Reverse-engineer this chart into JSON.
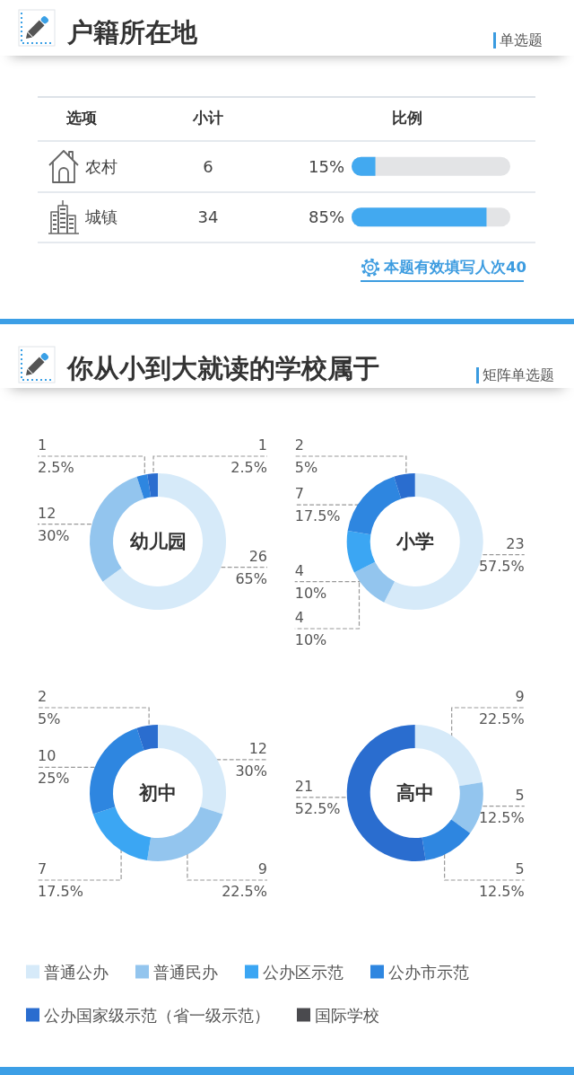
{
  "chart_data": [
    {
      "type": "bar",
      "orientation": "horizontal",
      "title": "户籍所在地",
      "subtitle": "单选题",
      "ylabel": "选项",
      "xlabel": "比例",
      "categories": [
        "农村",
        "城镇"
      ],
      "values": [
        15,
        85
      ],
      "value_labels": [
        "15%",
        "85%"
      ],
      "color": "#42a9f0",
      "xlim": [
        0,
        100
      ],
      "tick_labels": "y",
      "grid": "y",
      "annotations": [
        "小计",
        "6",
        "34",
        "本题有效填写人次40"
      ]
    },
    {
      "type": "donut",
      "title": "你从小到大就读的学校属于",
      "subtitle": "矩阵单选题",
      "categories": [
        "普通公办",
        "普通民办",
        "公办区示范",
        "公办市示范",
        "公办国家级示范（省一级示范）",
        "国际学校"
      ],
      "colors": [
        "#d6eaf9",
        "#93c5ee",
        "#3ba6f3",
        "#2e86e0",
        "#2a6dcf",
        "#4a4a4e"
      ],
      "legend": "bottom",
      "series": [
        {
          "name": "幼儿园",
          "values": [
            26,
            12,
            0,
            1,
            1,
            0
          ],
          "value_labels": [
            "26\n65%",
            "12\n30%",
            null,
            "1\n2.5%",
            "1\n2.5%",
            null
          ]
        },
        {
          "name": "小学",
          "values": [
            23,
            4,
            4,
            7,
            2,
            0
          ],
          "value_labels": [
            "23\n57.5%",
            "4\n10%",
            "4\n10%",
            "7\n17.5%",
            "2\n5%",
            null
          ]
        },
        {
          "name": "初中",
          "values": [
            12,
            9,
            7,
            10,
            2,
            0
          ],
          "value_labels": [
            "12\n30%",
            "9\n22.5%",
            "7\n17.5%",
            "10\n25%",
            "2\n5%",
            null
          ]
        },
        {
          "name": "高中",
          "values": [
            9,
            5,
            0,
            5,
            21,
            0
          ],
          "value_labels": [
            "9\n22.5%",
            "5\n12.5%",
            null,
            "5\n12.5%",
            "21\n52.5%",
            null
          ]
        }
      ]
    }
  ]
}
